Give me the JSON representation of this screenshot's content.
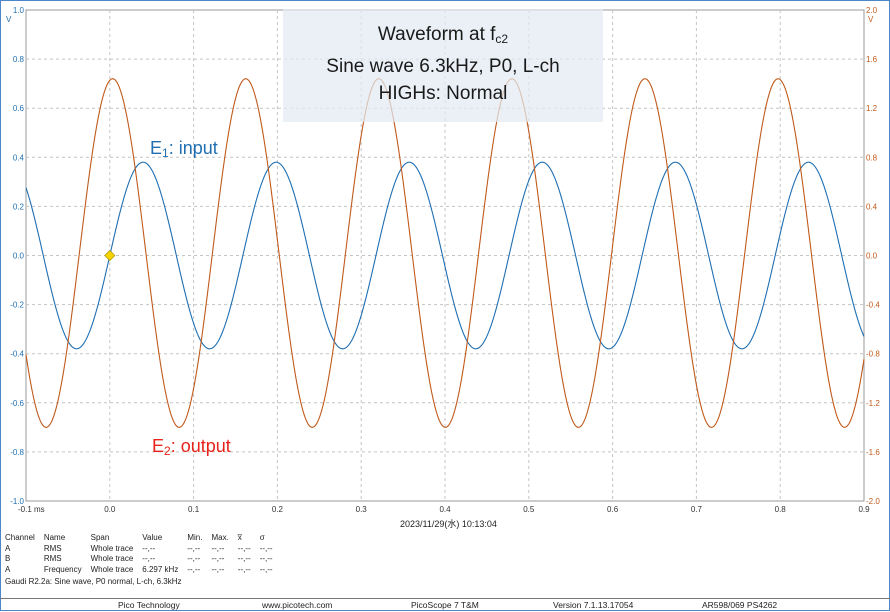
{
  "chart_data": {
    "type": "line",
    "x_unit_label": "ms",
    "x_ticks": [
      "-0.1 ms",
      "0.0",
      "0.1",
      "0.2",
      "0.3",
      "0.4",
      "0.5",
      "0.6",
      "0.7",
      "0.8",
      "0.9"
    ],
    "xlim": [
      -0.1,
      0.9
    ],
    "left_axis": {
      "unit": "V",
      "ylim": [
        -1.0,
        1.0
      ],
      "ticks": [
        "1.0",
        "0.8",
        "0.6",
        "0.4",
        "0.2",
        "0.0",
        "-0.2",
        "-0.4",
        "-0.6",
        "-0.8",
        "-1.0"
      ]
    },
    "right_axis": {
      "unit": "V",
      "ylim": [
        -2.0,
        2.0
      ],
      "ticks": [
        "2.0",
        "1.6",
        "1.2",
        "0.8",
        "0.4",
        "0.0",
        "-0.4",
        "-0.8",
        "-1.2",
        "-1.6",
        "-2.0"
      ]
    },
    "grid": true,
    "series": [
      {
        "name": "E1: input",
        "axis": "left",
        "color": "#1f6fb2",
        "frequency_khz": 6.297,
        "amplitude_v": 0.38,
        "offset_v": 0.0,
        "first_peak_ms": 0.0397
      },
      {
        "name": "E2: output",
        "axis": "right",
        "color": "#c05a1c",
        "frequency_khz": 6.297,
        "amplitude_v": 1.42,
        "offset_v": 0.02,
        "first_peak_ms": 0.0034
      }
    ],
    "trigger_marker": {
      "x_ms": 0.0,
      "y_v": 0.0,
      "color": "#f5d400"
    },
    "annotations": {
      "info_line1_main": "Waveform at f",
      "info_line1_sub": "c2",
      "info_line2": "Sine wave 6.3kHz, P0, L-ch",
      "info_line3": "HIGHs: Normal",
      "e1_main": "E",
      "e1_sub": "1",
      "e1_rest": ": input",
      "e2_main": "E",
      "e2_sub": "2",
      "e2_rest": ": output"
    }
  },
  "timestamp": "2023/11/29(水) 10:13:04",
  "measurements": {
    "headers": [
      "Channel",
      "Name",
      "Span",
      "Value",
      "Min.",
      "Max.",
      "x̅",
      "σ"
    ],
    "rows": [
      [
        "A",
        "RMS",
        "Whole trace",
        "--,--",
        "--,--",
        "--,--",
        "--,--",
        "--,--"
      ],
      [
        "B",
        "RMS",
        "Whole trace",
        "--,--",
        "--,--",
        "--,--",
        "--,--",
        "--,--"
      ],
      [
        "A",
        "Frequency",
        "Whole trace",
        "6.297 kHz",
        "--,--",
        "--,--",
        "--,--",
        "--,--"
      ]
    ]
  },
  "footnote": "Gaudi R2.2a: Sine wave, P0 normal, L-ch, 6.3kHz",
  "footer": {
    "company": "Pico Technology",
    "website": "www.picotech.com",
    "product": "PicoScope 7 T&M",
    "version": "Version 7.1.13.17054",
    "device": "AR598/069 PS4262"
  }
}
